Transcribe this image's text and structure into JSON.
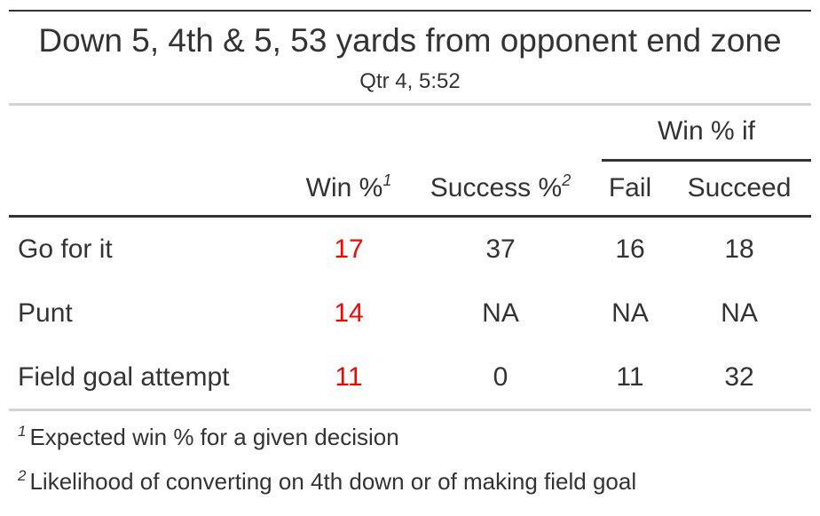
{
  "title": "Down 5, 4th & 5, 53 yards from opponent end zone",
  "subtitle": "Qtr 4, 5:52",
  "spanner": "Win % if",
  "columns": {
    "win": "Win %",
    "win_mark": "1",
    "success": "Success %",
    "success_mark": "2",
    "fail": "Fail",
    "succeed": "Succeed"
  },
  "rows": [
    {
      "label": "Go for it",
      "win": "17",
      "success": "37",
      "fail": "16",
      "succeed": "18"
    },
    {
      "label": "Punt",
      "win": "14",
      "success": "NA",
      "fail": "NA",
      "succeed": "NA"
    },
    {
      "label": "Field goal attempt",
      "win": "11",
      "success": "0",
      "fail": "11",
      "succeed": "32"
    }
  ],
  "footnotes": [
    {
      "mark": "1",
      "text": "Expected win % for a given decision"
    },
    {
      "mark": "2",
      "text": "Likelihood of converting on 4th down or of making field goal"
    }
  ],
  "colors": {
    "highlight": "#ff0000",
    "text": "#333333",
    "rule_light": "#d3d3d3"
  }
}
